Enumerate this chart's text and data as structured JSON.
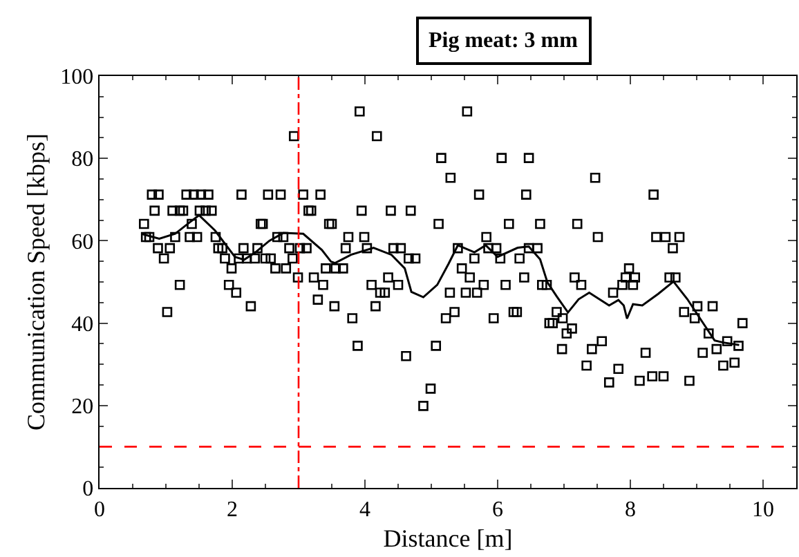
{
  "chart_data": {
    "type": "scatter",
    "title": "Pig meat: 3 mm",
    "xlabel": "Distance [m]",
    "ylabel": "Communication Speed [kbps]",
    "xlim": [
      0,
      10.5
    ],
    "xticks": [
      0,
      2,
      4,
      6,
      8,
      10
    ],
    "ylim": [
      0,
      100
    ],
    "yticks": [
      0,
      20,
      40,
      60,
      80,
      100
    ],
    "grid": false,
    "series": [
      {
        "marker": "square",
        "color": "#000000",
        "x": [
          0.67,
          0.7,
          0.75,
          0.79,
          0.89,
          0.83,
          0.88,
          0.97,
          1.02,
          1.06,
          1.1,
          1.21,
          1.26,
          1.14,
          1.21,
          1.31,
          1.42,
          1.53,
          1.64,
          1.36,
          1.47,
          1.39,
          1.51,
          1.6,
          1.69,
          1.75,
          1.79,
          1.85,
          1.89,
          1.95,
          1.99,
          2.06,
          2.1,
          2.17,
          2.22,
          2.34,
          2.14,
          2.28,
          2.38,
          2.43,
          2.46,
          2.5,
          2.58,
          2.54,
          2.73,
          2.65,
          2.81,
          2.68,
          2.77,
          2.86,
          2.91,
          2.93,
          2.99,
          3.02,
          3.12,
          3.07,
          3.15,
          3.19,
          3.23,
          3.29,
          3.33,
          3.37,
          3.41,
          3.46,
          3.5,
          3.54,
          3.56,
          3.67,
          3.71,
          3.75,
          3.99,
          3.81,
          3.89,
          3.92,
          3.95,
          4.03,
          4.1,
          4.16,
          4.18,
          4.23,
          4.3,
          4.35,
          4.39,
          4.43,
          4.54,
          4.5,
          4.62,
          4.66,
          4.76,
          4.69,
          4.88,
          4.99,
          5.07,
          5.11,
          5.15,
          5.22,
          5.28,
          5.29,
          5.35,
          5.4,
          5.46,
          5.52,
          5.54,
          5.58,
          5.65,
          5.69,
          5.72,
          5.79,
          5.83,
          5.86,
          5.98,
          5.94,
          6.04,
          6.06,
          6.12,
          6.17,
          6.24,
          6.29,
          6.33,
          6.4,
          6.43,
          6.47,
          6.6,
          6.47,
          6.64,
          6.67,
          6.74,
          6.78,
          6.83,
          6.89,
          6.97,
          6.98,
          7.04,
          7.12,
          7.16,
          7.2,
          7.26,
          7.34,
          7.42,
          7.47,
          7.51,
          7.57,
          7.68,
          7.74,
          7.82,
          7.88,
          8.04,
          7.93,
          8.07,
          7.98,
          8.14,
          8.23,
          8.33,
          8.5,
          8.35,
          8.39,
          8.53,
          8.74,
          8.64,
          8.59,
          8.68,
          8.81,
          8.89,
          8.97,
          9.01,
          9.09,
          9.18,
          9.24,
          9.3,
          9.4,
          9.46,
          9.57,
          9.63,
          9.69
        ],
        "values": [
          64.1,
          60.9,
          60.9,
          71.2,
          71.2,
          67.3,
          58.2,
          55.7,
          42.7,
          58.2,
          67.3,
          67.3,
          67.3,
          60.9,
          49.3,
          71.2,
          71.2,
          71.2,
          71.2,
          60.9,
          60.9,
          64.1,
          67.3,
          67.3,
          67.3,
          60.9,
          58.2,
          58.2,
          55.7,
          49.3,
          53.3,
          47.4,
          55.7,
          58.2,
          55.7,
          55.7,
          71.2,
          44.1,
          58.2,
          64.1,
          64.1,
          55.7,
          55.7,
          71.2,
          71.2,
          53.3,
          53.3,
          60.9,
          60.9,
          58.2,
          55.7,
          85.4,
          51.1,
          58.2,
          58.2,
          71.2,
          67.3,
          67.3,
          51.1,
          45.7,
          71.2,
          49.3,
          53.3,
          64.1,
          64.1,
          44.1,
          53.3,
          53.3,
          58.2,
          60.9,
          60.9,
          41.2,
          34.5,
          91.4,
          67.3,
          58.2,
          49.3,
          44.1,
          85.4,
          47.4,
          47.4,
          51.1,
          67.3,
          58.2,
          58.2,
          49.3,
          32.0,
          55.7,
          55.7,
          67.3,
          19.9,
          24.1,
          34.5,
          64.1,
          80.1,
          41.2,
          47.4,
          75.3,
          42.7,
          58.2,
          53.3,
          47.4,
          91.4,
          51.1,
          55.7,
          47.4,
          71.2,
          49.3,
          60.9,
          58.2,
          58.2,
          41.2,
          55.7,
          80.1,
          49.3,
          64.1,
          42.7,
          42.7,
          55.7,
          51.1,
          71.2,
          58.2,
          58.2,
          80.1,
          64.1,
          49.3,
          49.3,
          40.0,
          40.0,
          42.7,
          33.7,
          41.2,
          37.5,
          38.7,
          51.1,
          64.1,
          49.3,
          29.7,
          33.7,
          75.3,
          60.9,
          35.6,
          25.6,
          47.4,
          28.9,
          49.3,
          49.3,
          51.1,
          51.1,
          53.3,
          26.0,
          32.8,
          27.1,
          27.1,
          71.2,
          60.9,
          60.9,
          60.9,
          58.2,
          51.1,
          51.1,
          42.7,
          26.0,
          41.2,
          44.1,
          32.8,
          37.5,
          44.1,
          33.7,
          29.7,
          35.6,
          30.4,
          34.5,
          40.0
        ]
      },
      {
        "type": "line",
        "marker": "none",
        "line_style": "solid",
        "color": "#000000",
        "x": [
          0.63,
          0.9,
          1.14,
          1.36,
          1.5,
          1.74,
          2.04,
          2.18,
          2.35,
          2.56,
          2.77,
          3.07,
          3.35,
          3.49,
          3.55,
          3.79,
          4.13,
          4.4,
          4.6,
          4.7,
          4.88,
          5.09,
          5.26,
          5.4,
          5.65,
          5.82,
          6.0,
          6.3,
          6.47,
          6.64,
          6.75,
          6.89,
          7.06,
          7.22,
          7.38,
          7.68,
          7.82,
          7.9,
          7.95,
          8.04,
          8.18,
          8.42,
          8.65,
          8.86,
          9.06,
          9.27,
          9.4,
          9.64
        ],
        "values": [
          61.7,
          60.5,
          61.7,
          64.5,
          66.2,
          62.5,
          56.1,
          55.4,
          57.2,
          60.0,
          61.9,
          61.7,
          57.8,
          54.9,
          54.6,
          56.6,
          58.3,
          56.6,
          53.3,
          47.6,
          46.3,
          49.3,
          54.4,
          58.9,
          57.2,
          58.9,
          56.1,
          58.3,
          58.6,
          55.5,
          49.9,
          46.5,
          42.6,
          45.8,
          47.4,
          44.3,
          45.6,
          44.3,
          41.1,
          44.6,
          44.3,
          47.1,
          50.1,
          45.8,
          40.9,
          35.8,
          35.3,
          34.7
        ]
      }
    ],
    "ref_lines": [
      {
        "axis": "x",
        "value": 3,
        "color": "#ff0000",
        "line_style": "dashdot"
      },
      {
        "axis": "y",
        "value": 10,
        "color": "#ff0000",
        "line_style": "dashed"
      }
    ]
  }
}
